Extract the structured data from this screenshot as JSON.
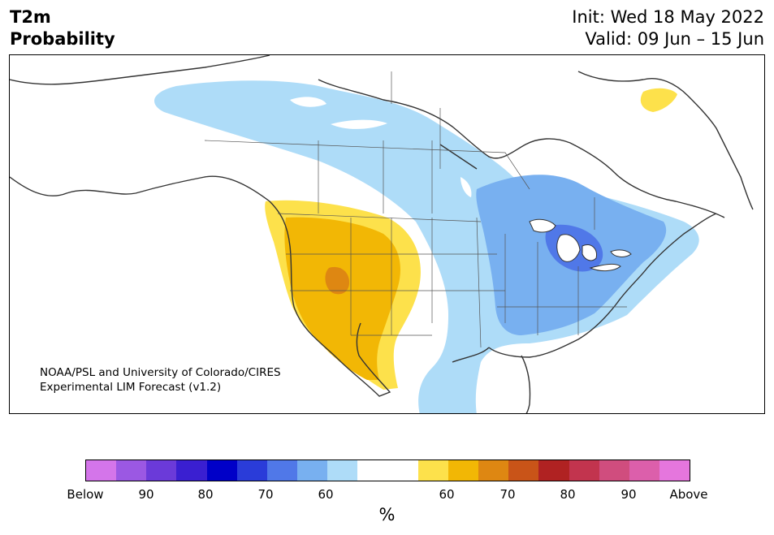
{
  "title": {
    "line1": "T2m",
    "line2": "Probability",
    "init": "Init: Wed 18 May 2022",
    "valid": "Valid: 09 Jun – 15 Jun"
  },
  "credit": {
    "line1": "NOAA/PSL and University of Colorado/CIRES",
    "line2": "Experimental LIM Forecast (v1.2)"
  },
  "colorbar": {
    "unit": "%",
    "colors": [
      "#d475ea",
      "#9b58e3",
      "#6b3ad9",
      "#3a1fd1",
      "#0000c8",
      "#2a3cd9",
      "#5078e8",
      "#78b0f0",
      "#aedcf8",
      "#ffffff",
      "#ffffff",
      "#fde14b",
      "#f2b705",
      "#de8712",
      "#c95418",
      "#b02222",
      "#c2344e",
      "#d04d7e",
      "#dc5fab",
      "#e576dd"
    ],
    "tick_labels": [
      "Below",
      "90",
      "80",
      "70",
      "60",
      "60",
      "70",
      "80",
      "90",
      "Above"
    ]
  },
  "legend_colors": {
    "light_blue": "#aedcf8",
    "mid_blue": "#78b0f0",
    "blue": "#5078e8",
    "yellow": "#fde14b",
    "gold": "#f2b705",
    "orange": "#de8712"
  }
}
